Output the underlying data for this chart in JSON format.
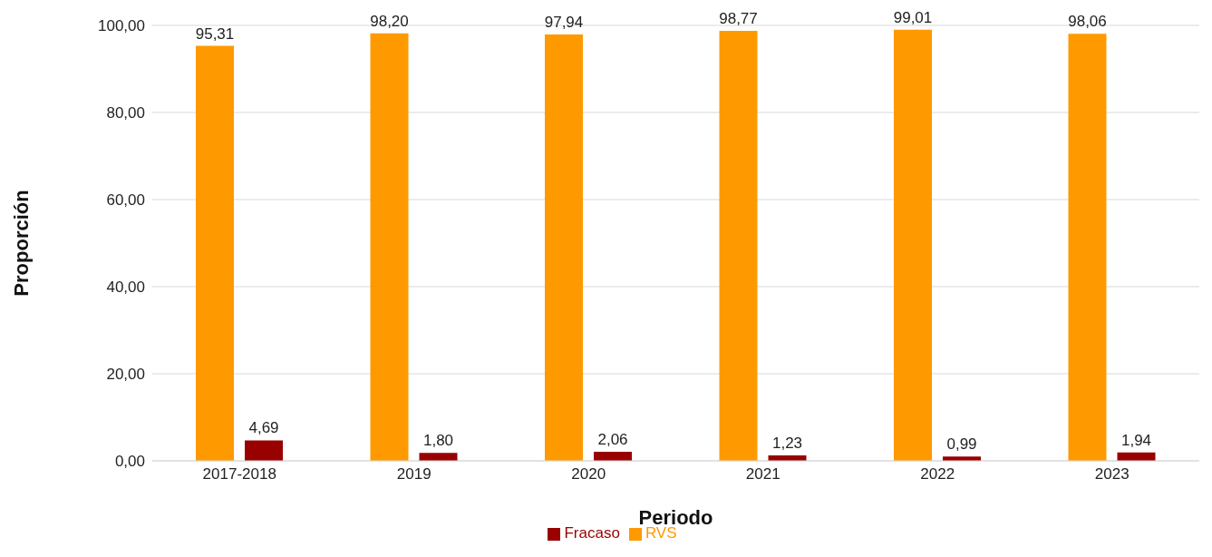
{
  "chart_data": {
    "type": "bar",
    "xlabel": "Periodo",
    "ylabel": "Proporción",
    "categories": [
      "2017-2018",
      "2019",
      "2020",
      "2021",
      "2022",
      "2023"
    ],
    "series": [
      {
        "name": "RVS",
        "color": "#ff9900",
        "values": [
          95.31,
          98.2,
          97.94,
          98.77,
          99.01,
          98.06
        ],
        "value_labels": [
          "95,31",
          "98,20",
          "97,94",
          "98,77",
          "99,01",
          "98,06"
        ]
      },
      {
        "name": "Fracaso",
        "color": "#990000",
        "values": [
          4.69,
          1.8,
          2.06,
          1.23,
          0.99,
          1.94
        ],
        "value_labels": [
          "4,69",
          "1,80",
          "2,06",
          "1,23",
          "0,99",
          "1,94"
        ]
      }
    ],
    "ylim": [
      0,
      100
    ],
    "yticks": [
      {
        "value": 0,
        "label": "0,00"
      },
      {
        "value": 20,
        "label": "20,00"
      },
      {
        "value": 40,
        "label": "40,00"
      },
      {
        "value": 60,
        "label": "60,00"
      },
      {
        "value": 80,
        "label": "80,00"
      },
      {
        "value": 100,
        "label": "100,00"
      }
    ],
    "grid": "y",
    "legend": "bottom"
  }
}
